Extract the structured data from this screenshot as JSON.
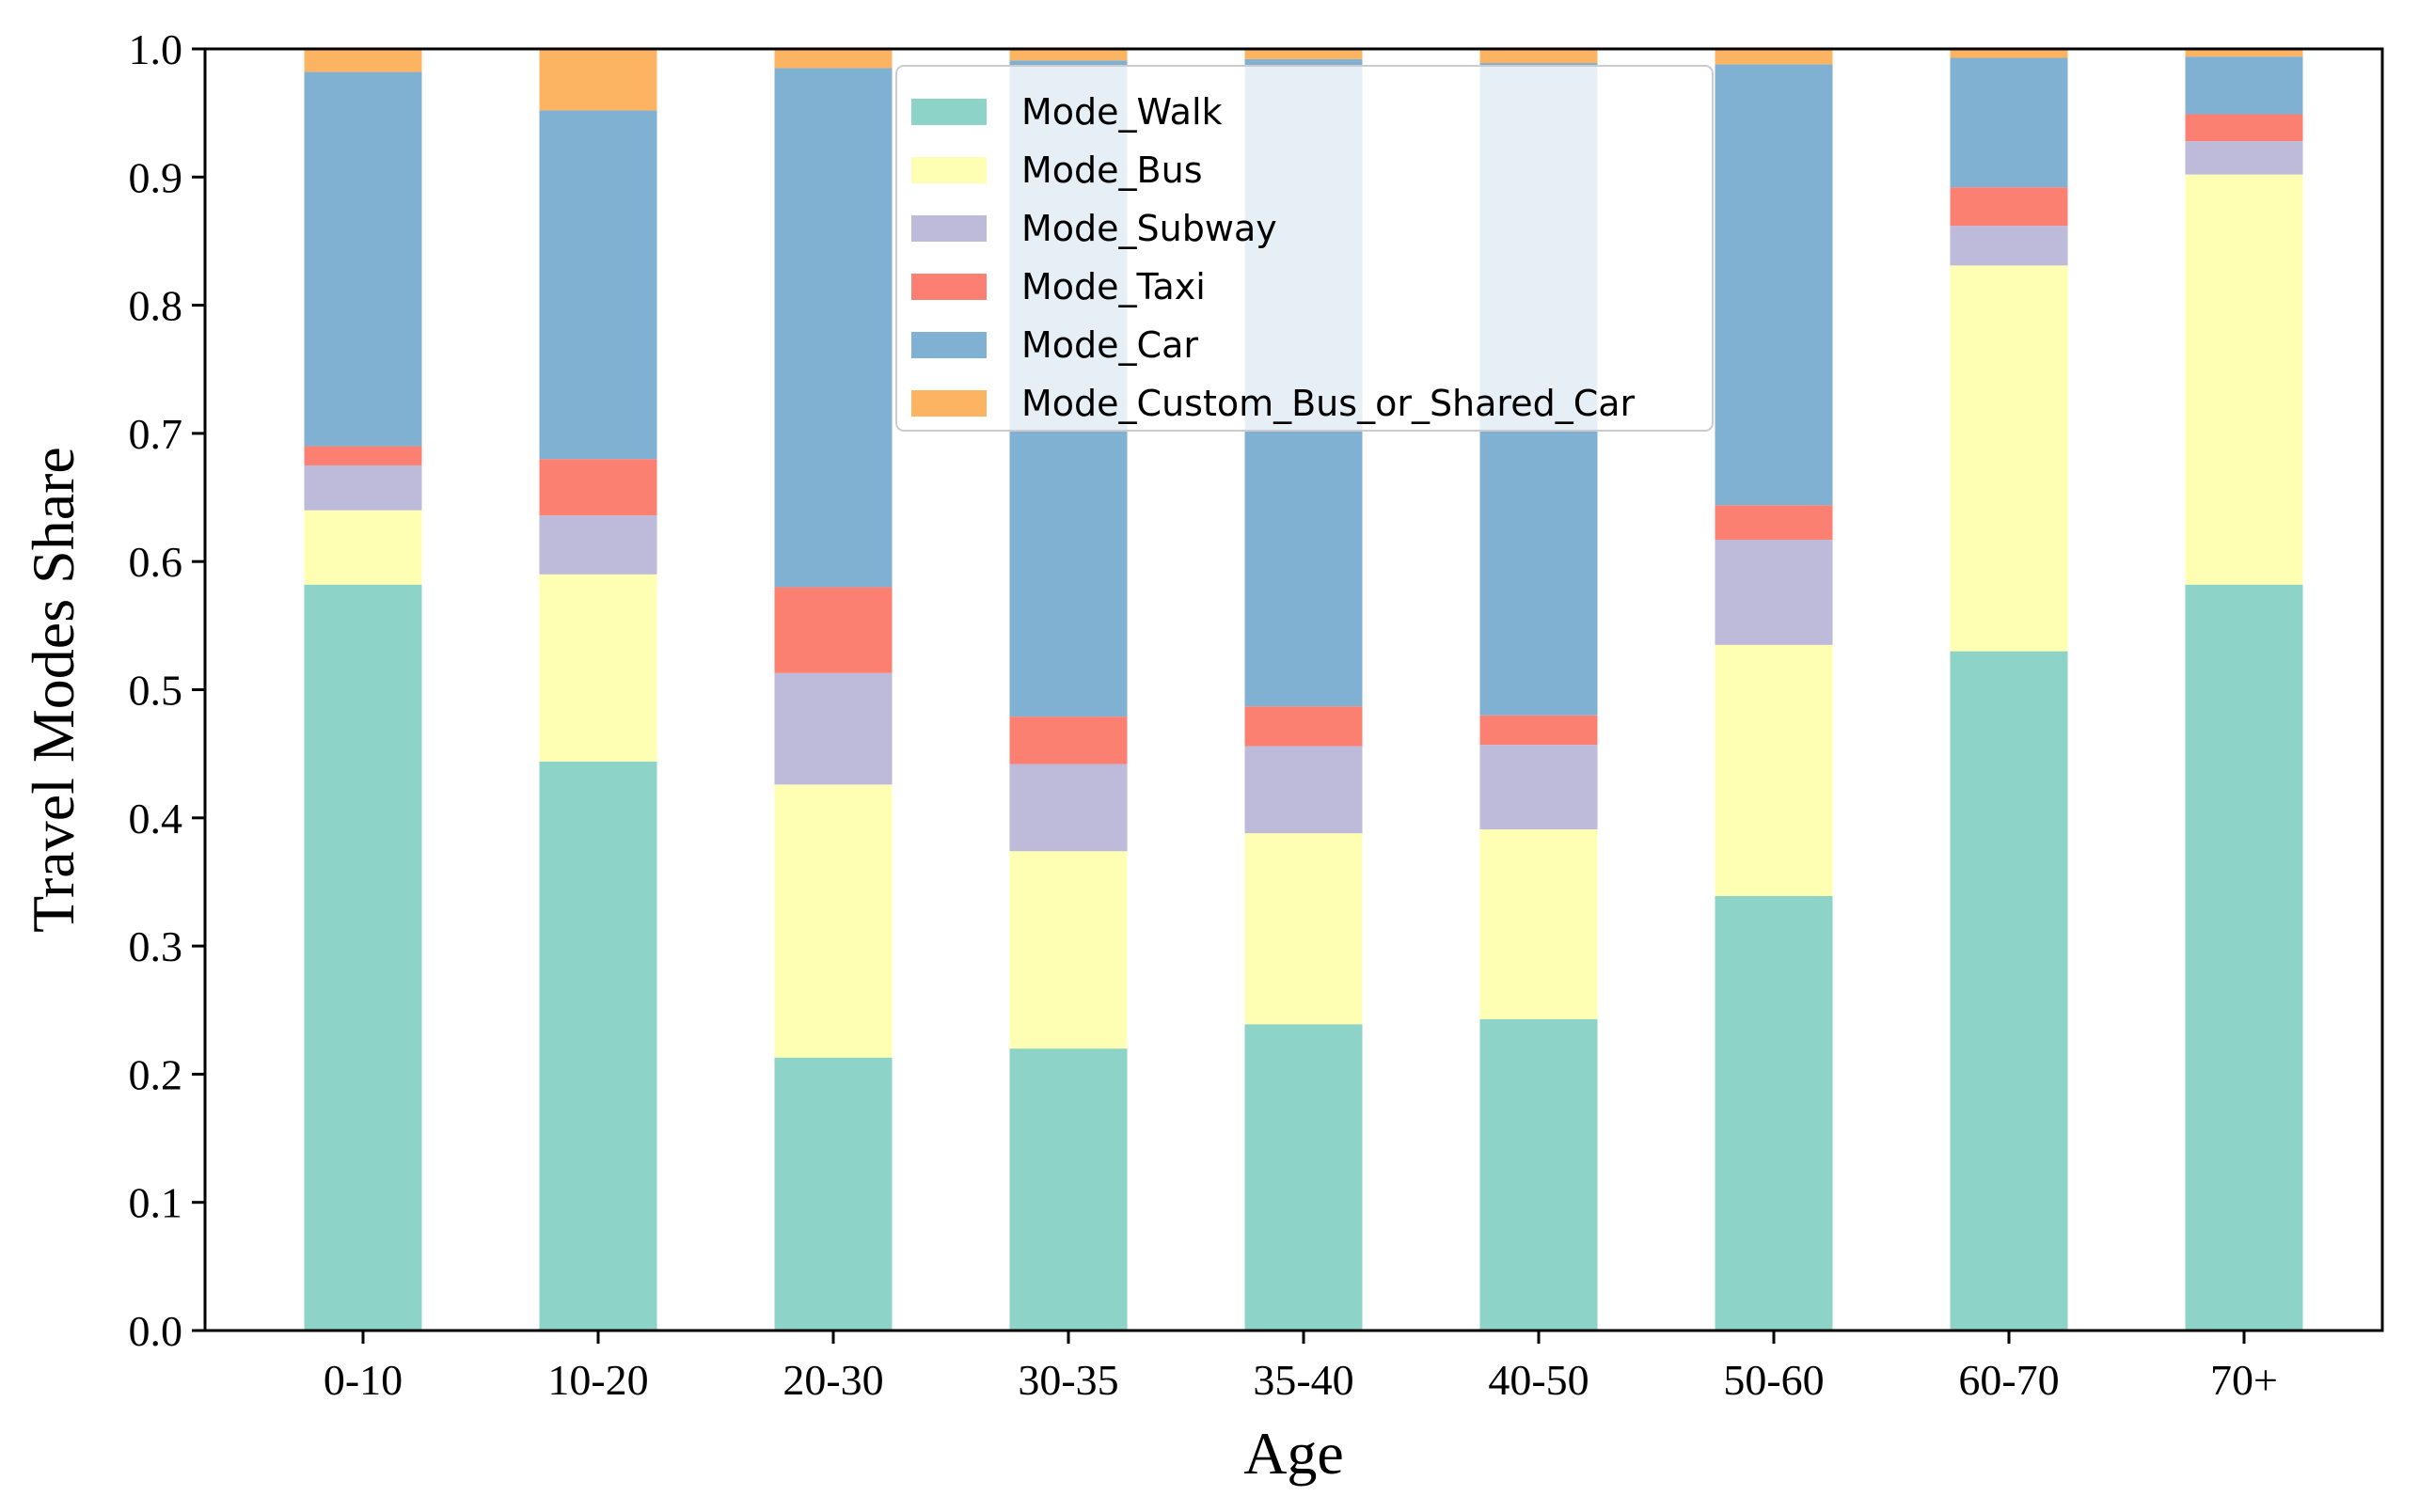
{
  "chart_data": {
    "type": "bar",
    "stacked": true,
    "title": "",
    "xlabel": "Age",
    "ylabel": "Travel Modes Share",
    "ylim": [
      0,
      1.0
    ],
    "yticks": [
      "0.0",
      "0.1",
      "0.2",
      "0.3",
      "0.4",
      "0.5",
      "0.6",
      "0.7",
      "0.8",
      "0.9",
      "1.0"
    ],
    "categories": [
      "0-10",
      "10-20",
      "20-30",
      "30-35",
      "35-40",
      "40-50",
      "50-60",
      "60-70",
      "70+"
    ],
    "legend_position": "top-center",
    "grid": false,
    "series": [
      {
        "name": "Mode_Walk",
        "color": "#8dd3c7",
        "values": [
          0.582,
          0.444,
          0.213,
          0.22,
          0.239,
          0.243,
          0.339,
          0.53,
          0.582
        ]
      },
      {
        "name": "Mode_Bus",
        "color": "#ffffb3",
        "values": [
          0.058,
          0.146,
          0.213,
          0.154,
          0.149,
          0.148,
          0.196,
          0.301,
          0.32
        ]
      },
      {
        "name": "Mode_Subway",
        "color": "#bebada",
        "values": [
          0.035,
          0.046,
          0.087,
          0.068,
          0.068,
          0.066,
          0.082,
          0.031,
          0.026
        ]
      },
      {
        "name": "Mode_Taxi",
        "color": "#fb8072",
        "values": [
          0.015,
          0.044,
          0.067,
          0.037,
          0.031,
          0.023,
          0.027,
          0.03,
          0.021
        ]
      },
      {
        "name": "Mode_Car",
        "color": "#80b1d3",
        "values": [
          0.292,
          0.272,
          0.405,
          0.512,
          0.505,
          0.509,
          0.344,
          0.101,
          0.045
        ]
      },
      {
        "name": "Mode_Custom_Bus_or_Shared_Car",
        "color": "#fdb462",
        "values": [
          0.018,
          0.048,
          0.015,
          0.009,
          0.008,
          0.011,
          0.012,
          0.007,
          0.006
        ]
      }
    ]
  }
}
